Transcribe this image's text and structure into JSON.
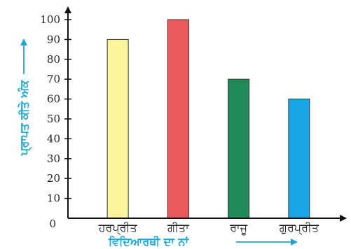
{
  "chart_data": {
    "type": "bar",
    "categories": [
      "ਹਰਪ੍ਰੀਤ",
      "ਗੀਤਾ",
      "ਰਾਜੂ",
      "ਗੁਰਪ੍ਰੀਤ"
    ],
    "values": [
      90,
      100,
      70,
      60
    ],
    "bar_colors": [
      "#fdf59b",
      "#ea5a5a",
      "#1f8a58",
      "#1aa5e6"
    ],
    "xlabel": "ਵਿਦਿਆਰਥੀ ਦਾ ਨਾਂ",
    "ylabel": "ਪ੍ਰਾਪਤ ਕੀਤੇ ਅੰਕ",
    "ylim": [
      0,
      100
    ],
    "yticks": [
      0,
      10,
      20,
      30,
      40,
      50,
      60,
      70,
      80,
      90,
      100
    ],
    "grid": false,
    "axis_title_color": "#1aa7d6"
  }
}
